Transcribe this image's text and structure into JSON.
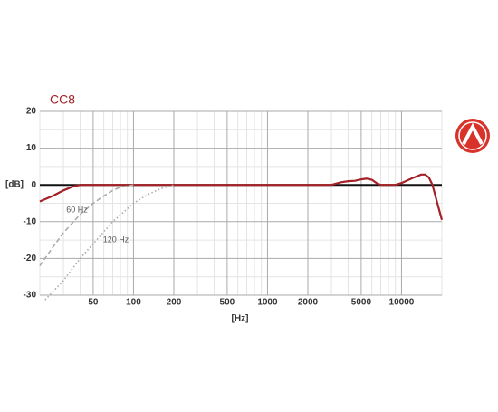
{
  "chart_data": {
    "type": "line",
    "title": "CC8",
    "xlabel": "[Hz]",
    "ylabel": "[dB]",
    "xscale": "log",
    "grid": true,
    "xlim": [
      20,
      20000
    ],
    "ylim": [
      -30,
      20
    ],
    "xticks": [
      50,
      100,
      200,
      500,
      1000,
      2000,
      5000,
      10000
    ],
    "xminorticks": [
      30,
      40,
      60,
      70,
      80,
      90,
      300,
      400,
      600,
      700,
      800,
      900,
      3000,
      4000,
      6000,
      7000,
      8000,
      9000,
      20000
    ],
    "yticks": [
      -30,
      -20,
      -10,
      0,
      10,
      20
    ],
    "yminorticks": [
      -25,
      -15,
      -5,
      5,
      15
    ],
    "series": [
      {
        "color": "#a32127",
        "style": "solid",
        "x": [
          20,
          25,
          30,
          35,
          40,
          50,
          100,
          1000,
          2000,
          3000,
          3500,
          4000,
          4500,
          5000,
          5500,
          6000,
          6500,
          7000,
          8000,
          9000,
          10000,
          12000,
          14000,
          15000,
          16000,
          17000,
          18500,
          20000
        ],
        "values": [
          -4.5,
          -3,
          -1.5,
          -0.5,
          0,
          0,
          0,
          0,
          0,
          0,
          0.7,
          1,
          1.1,
          1.5,
          1.7,
          1.4,
          0.5,
          0,
          0,
          0,
          0.5,
          1.8,
          2.8,
          2.8,
          2,
          0,
          -5,
          -9.5
        ]
      },
      {
        "name": "60 Hz",
        "color": "#aaaaaa",
        "style": "dashed",
        "x": [
          20,
          25,
          30,
          40,
          50,
          60,
          70,
          80,
          100
        ],
        "values": [
          -22,
          -17,
          -13,
          -8,
          -5,
          -3,
          -1.5,
          -0.6,
          0
        ]
      },
      {
        "name": "120 Hz",
        "color": "#aaaaaa",
        "style": "dotted",
        "x": [
          21,
          30,
          40,
          50,
          70,
          100,
          130,
          160,
          200
        ],
        "values": [
          -32,
          -26,
          -20,
          -16,
          -10,
          -5,
          -2.5,
          -1,
          0
        ]
      }
    ]
  }
}
